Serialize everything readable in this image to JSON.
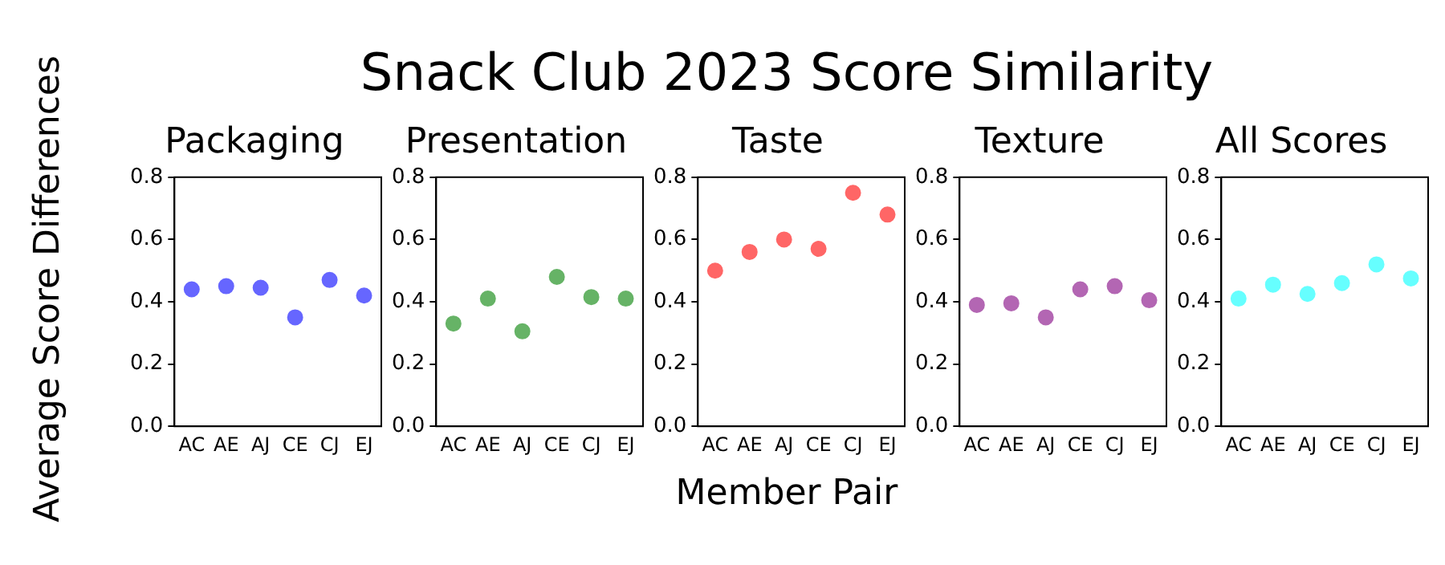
{
  "chart_data": [
    {
      "type": "other",
      "title": "Snack Club 2023 Score Similarity",
      "xlabel": "Member Pair",
      "ylabel": "Average Score Differences"
    },
    {
      "type": "scatter",
      "title": "Packaging",
      "categories": [
        "AC",
        "AE",
        "AJ",
        "CE",
        "CJ",
        "EJ"
      ],
      "values": [
        0.44,
        0.45,
        0.445,
        0.35,
        0.47,
        0.42
      ],
      "color": "#6666ff",
      "marker": "circle",
      "ylim": [
        0,
        0.8
      ],
      "yticks": [
        {
          "value": 0,
          "label": "0.0"
        },
        {
          "value": 0.2,
          "label": "0.2"
        },
        {
          "value": 0.4,
          "label": "0.4"
        },
        {
          "value": 0.6,
          "label": "0.6"
        },
        {
          "value": 0.8,
          "label": "0.8"
        }
      ]
    },
    {
      "type": "scatter",
      "title": "Presentation",
      "categories": [
        "AC",
        "AE",
        "AJ",
        "CE",
        "CJ",
        "EJ"
      ],
      "values": [
        0.33,
        0.41,
        0.305,
        0.48,
        0.415,
        0.41
      ],
      "color": "#66b366",
      "marker": "circle",
      "ylim": [
        0,
        0.8
      ],
      "yticks": [
        {
          "value": 0,
          "label": "0.0"
        },
        {
          "value": 0.2,
          "label": "0.2"
        },
        {
          "value": 0.4,
          "label": "0.4"
        },
        {
          "value": 0.6,
          "label": "0.6"
        },
        {
          "value": 0.8,
          "label": "0.8"
        }
      ]
    },
    {
      "type": "scatter",
      "title": "Taste",
      "categories": [
        "AC",
        "AE",
        "AJ",
        "CE",
        "CJ",
        "EJ"
      ],
      "values": [
        0.5,
        0.56,
        0.6,
        0.57,
        0.75,
        0.68
      ],
      "color": "#ff6666",
      "marker": "circle",
      "ylim": [
        0,
        0.8
      ],
      "yticks": [
        {
          "value": 0,
          "label": "0.0"
        },
        {
          "value": 0.2,
          "label": "0.2"
        },
        {
          "value": 0.4,
          "label": "0.4"
        },
        {
          "value": 0.6,
          "label": "0.6"
        },
        {
          "value": 0.8,
          "label": "0.8"
        }
      ]
    },
    {
      "type": "scatter",
      "title": "Texture",
      "categories": [
        "AC",
        "AE",
        "AJ",
        "CE",
        "CJ",
        "EJ"
      ],
      "values": [
        0.39,
        0.395,
        0.35,
        0.44,
        0.45,
        0.405
      ],
      "color": "#b366b3",
      "marker": "circle",
      "ylim": [
        0,
        0.8
      ],
      "yticks": [
        {
          "value": 0,
          "label": "0.0"
        },
        {
          "value": 0.2,
          "label": "0.2"
        },
        {
          "value": 0.4,
          "label": "0.4"
        },
        {
          "value": 0.6,
          "label": "0.6"
        },
        {
          "value": 0.8,
          "label": "0.8"
        }
      ]
    },
    {
      "type": "scatter",
      "title": "All Scores",
      "categories": [
        "AC",
        "AE",
        "AJ",
        "CE",
        "CJ",
        "EJ"
      ],
      "values": [
        0.41,
        0.455,
        0.425,
        0.46,
        0.52,
        0.475
      ],
      "color": "#66ffff",
      "marker": "circle",
      "ylim": [
        0,
        0.8
      ],
      "yticks": [
        {
          "value": 0,
          "label": "0.0"
        },
        {
          "value": 0.2,
          "label": "0.2"
        },
        {
          "value": 0.4,
          "label": "0.4"
        },
        {
          "value": 0.6,
          "label": "0.6"
        },
        {
          "value": 0.8,
          "label": "0.8"
        }
      ]
    }
  ]
}
